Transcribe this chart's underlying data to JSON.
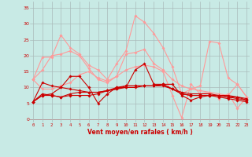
{
  "bg_color": "#c8eae5",
  "grid_color": "#aabbbb",
  "line_color_dark": "#cc0000",
  "line_color_light": "#ff9999",
  "xlabel": "Vent moyen/en rafales ( km/h )",
  "xlabel_color": "#cc0000",
  "yticks": [
    0,
    5,
    10,
    15,
    20,
    25,
    30,
    35
  ],
  "xticks": [
    0,
    1,
    2,
    3,
    4,
    5,
    6,
    7,
    8,
    9,
    10,
    11,
    12,
    13,
    14,
    15,
    16,
    17,
    18,
    19,
    20,
    21,
    22,
    23
  ],
  "ylim": [
    -1,
    37
  ],
  "xlim": [
    -0.3,
    23.3
  ],
  "line_dark": [
    [
      5.5,
      7.5,
      8.0,
      10.0,
      13.5,
      13.5,
      10.0,
      5.0,
      8.0,
      10.0,
      10.0,
      15.5,
      17.5,
      11.0,
      11.0,
      11.0,
      7.5,
      6.0,
      7.0,
      7.5,
      7.5,
      7.5,
      7.0,
      6.0
    ],
    [
      5.5,
      11.5,
      10.5,
      10.0,
      9.5,
      9.0,
      8.5,
      8.5,
      9.0,
      10.0,
      10.5,
      10.5,
      10.5,
      10.5,
      11.0,
      9.5,
      8.0,
      7.5,
      7.5,
      7.5,
      7.5,
      7.0,
      7.0,
      6.5
    ],
    [
      5.5,
      8.0,
      7.5,
      7.0,
      8.0,
      8.5,
      8.5,
      8.5,
      9.0,
      9.5,
      10.5,
      10.5,
      10.5,
      10.5,
      10.5,
      9.5,
      8.5,
      8.0,
      8.0,
      8.0,
      7.5,
      7.0,
      6.5,
      6.0
    ],
    [
      5.5,
      7.5,
      7.5,
      7.0,
      7.5,
      7.5,
      7.5,
      8.0,
      9.0,
      9.5,
      10.0,
      10.0,
      10.5,
      10.5,
      11.0,
      9.5,
      8.0,
      7.5,
      7.5,
      7.5,
      7.0,
      6.5,
      6.0,
      5.5
    ]
  ],
  "line_light": [
    [
      12.5,
      19.5,
      19.5,
      26.5,
      22.5,
      20.5,
      17.0,
      15.5,
      12.5,
      17.5,
      21.5,
      32.5,
      30.5,
      27.0,
      22.5,
      16.5,
      8.0,
      9.5,
      10.5,
      24.5,
      24.0,
      13.0,
      11.0,
      7.0
    ],
    [
      12.5,
      15.5,
      20.0,
      20.5,
      21.5,
      20.0,
      16.0,
      12.5,
      11.5,
      13.5,
      20.5,
      21.0,
      22.0,
      17.5,
      15.5,
      12.5,
      10.5,
      9.5,
      9.0,
      8.5,
      8.0,
      7.5,
      11.0,
      7.0
    ],
    [
      12.5,
      9.5,
      9.5,
      10.5,
      11.5,
      14.0,
      15.0,
      13.0,
      12.0,
      13.5,
      15.5,
      16.5,
      17.0,
      16.5,
      15.0,
      7.5,
      0.5,
      11.0,
      8.0,
      8.5,
      6.5,
      8.0,
      3.5,
      7.0
    ]
  ]
}
